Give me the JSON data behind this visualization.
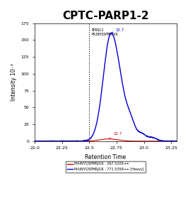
{
  "title": "CPTC-PARP1-2",
  "peptide_label_line1": "RERQC2",
  "peptide_label_line2": "MAINYQSPMRJGK",
  "xlabel": "Retention Time",
  "ylabel": "Intensity 10⁻³",
  "xlim": [
    22.0,
    23.3
  ],
  "ylim": [
    0,
    175
  ],
  "yticks": [
    0,
    25,
    50,
    75,
    100,
    125,
    150,
    175
  ],
  "xticks": [
    22.0,
    22.25,
    22.5,
    22.75,
    23.0,
    23.25
  ],
  "xtick_labels": [
    "22.0",
    "22.25",
    "22.5",
    "22.75",
    "23.0",
    "23.25"
  ],
  "vline_x": 22.5,
  "peak_x_blue": 22.7,
  "peak_y_blue": 160,
  "peak_x_red": 22.68,
  "peak_y_red": 3.2,
  "annotation_blue": "22.7",
  "annotation_red": "22.7",
  "blue_color": "#0000CC",
  "red_color": "#CC0000",
  "legend_red": "MAINYQSPMRJGK · 267.5205→+",
  "legend_blue": "MAINYQSPMRJGK · 771.5358→+ [Heavy]",
  "background_color": "#ffffff",
  "title_fontsize": 11,
  "axis_fontsize": 5.5,
  "tick_fontsize": 4.5,
  "legend_fontsize": 3.5
}
